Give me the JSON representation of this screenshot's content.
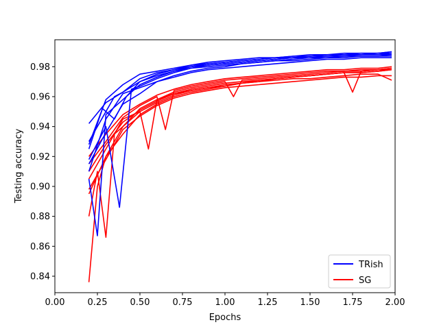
{
  "chart_data": {
    "type": "line",
    "xlabel": "Epochs",
    "ylabel": "Testing accuracy",
    "xlim": [
      0.0,
      2.0
    ],
    "ylim": [
      0.829,
      0.998
    ],
    "xticks": [
      "0.00",
      "0.25",
      "0.50",
      "0.75",
      "1.00",
      "1.25",
      "1.50",
      "1.75",
      "2.00"
    ],
    "yticks": [
      "0.84",
      "0.86",
      "0.88",
      "0.90",
      "0.92",
      "0.94",
      "0.96",
      "0.98"
    ],
    "grid": false,
    "legend_position": "bottom-right",
    "legend": [
      {
        "label": "TRish",
        "color": "#0000ff"
      },
      {
        "label": "SG",
        "color": "#ff0000"
      }
    ],
    "series": [
      {
        "group": "TRish",
        "color": "#0000ff",
        "x": [
          0.2,
          0.3,
          0.4,
          0.5,
          0.6,
          0.7,
          0.8,
          0.9,
          1.0,
          1.1,
          1.2,
          1.3,
          1.4,
          1.5,
          1.6,
          1.7,
          1.8,
          1.9,
          1.98
        ],
        "values": [
          0.942,
          0.956,
          0.963,
          0.972,
          0.976,
          0.978,
          0.981,
          0.982,
          0.983,
          0.984,
          0.985,
          0.986,
          0.987,
          0.987,
          0.988,
          0.988,
          0.988,
          0.989,
          0.989
        ]
      },
      {
        "group": "TRish",
        "color": "#0000ff",
        "x": [
          0.2,
          0.25,
          0.3,
          0.4,
          0.5,
          0.6,
          0.7,
          0.8,
          0.9,
          1.0,
          1.1,
          1.2,
          1.3,
          1.4,
          1.5,
          1.6,
          1.7,
          1.8,
          1.9,
          1.98
        ],
        "values": [
          0.905,
          0.867,
          0.948,
          0.958,
          0.968,
          0.973,
          0.977,
          0.979,
          0.981,
          0.982,
          0.983,
          0.984,
          0.985,
          0.986,
          0.987,
          0.987,
          0.988,
          0.988,
          0.988,
          0.989
        ]
      },
      {
        "group": "TRish",
        "color": "#0000ff",
        "x": [
          0.2,
          0.3,
          0.35,
          0.4,
          0.5,
          0.6,
          0.7,
          0.8,
          0.9,
          1.0,
          1.1,
          1.2,
          1.3,
          1.4,
          1.5,
          1.6,
          1.7,
          1.8,
          1.9,
          1.98
        ],
        "values": [
          0.93,
          0.95,
          0.96,
          0.963,
          0.97,
          0.975,
          0.978,
          0.98,
          0.981,
          0.982,
          0.983,
          0.984,
          0.985,
          0.986,
          0.986,
          0.987,
          0.987,
          0.988,
          0.988,
          0.988
        ]
      },
      {
        "group": "TRish",
        "color": "#0000ff",
        "x": [
          0.2,
          0.3,
          0.38,
          0.45,
          0.5,
          0.6,
          0.7,
          0.8,
          0.9,
          1.0,
          1.1,
          1.2,
          1.3,
          1.4,
          1.5,
          1.6,
          1.7,
          1.8,
          1.9,
          1.98
        ],
        "values": [
          0.918,
          0.94,
          0.886,
          0.965,
          0.967,
          0.972,
          0.976,
          0.979,
          0.98,
          0.981,
          0.982,
          0.983,
          0.984,
          0.985,
          0.986,
          0.986,
          0.987,
          0.987,
          0.987,
          0.988
        ]
      },
      {
        "group": "TRish",
        "color": "#0000ff",
        "x": [
          0.2,
          0.28,
          0.35,
          0.42,
          0.5,
          0.6,
          0.7,
          0.8,
          0.9,
          1.0,
          1.1,
          1.2,
          1.3,
          1.4,
          1.5,
          1.6,
          1.7,
          1.8,
          1.9,
          1.98
        ],
        "values": [
          0.925,
          0.952,
          0.945,
          0.96,
          0.97,
          0.974,
          0.977,
          0.98,
          0.982,
          0.983,
          0.984,
          0.985,
          0.986,
          0.986,
          0.987,
          0.988,
          0.988,
          0.989,
          0.989,
          0.99
        ]
      },
      {
        "group": "TRish",
        "color": "#0000ff",
        "x": [
          0.2,
          0.3,
          0.4,
          0.5,
          0.6,
          0.7,
          0.8,
          0.9,
          1.0,
          1.1,
          1.2,
          1.3,
          1.4,
          1.5,
          1.6,
          1.7,
          1.8,
          1.9,
          1.98
        ],
        "values": [
          0.915,
          0.936,
          0.955,
          0.962,
          0.97,
          0.974,
          0.977,
          0.979,
          0.98,
          0.982,
          0.983,
          0.984,
          0.984,
          0.985,
          0.986,
          0.986,
          0.987,
          0.987,
          0.987
        ]
      },
      {
        "group": "TRish",
        "color": "#0000ff",
        "x": [
          0.2,
          0.3,
          0.4,
          0.5,
          0.6,
          0.7,
          0.8,
          0.9,
          1.0,
          1.1,
          1.2,
          1.3,
          1.4,
          1.5,
          1.6,
          1.7,
          1.8,
          1.9,
          1.98
        ],
        "values": [
          0.91,
          0.945,
          0.962,
          0.966,
          0.97,
          0.973,
          0.976,
          0.978,
          0.979,
          0.98,
          0.981,
          0.982,
          0.983,
          0.984,
          0.985,
          0.985,
          0.986,
          0.986,
          0.986
        ]
      },
      {
        "group": "TRish",
        "color": "#0000ff",
        "x": [
          0.2,
          0.3,
          0.4,
          0.5,
          0.6,
          0.7,
          0.8,
          0.9,
          1.0,
          1.1,
          1.2,
          1.3,
          1.4,
          1.5,
          1.6,
          1.7,
          1.8,
          1.9,
          1.98
        ],
        "values": [
          0.928,
          0.958,
          0.968,
          0.975,
          0.977,
          0.979,
          0.981,
          0.983,
          0.984,
          0.985,
          0.986,
          0.986,
          0.987,
          0.988,
          0.988,
          0.989,
          0.989,
          0.989,
          0.99
        ]
      },
      {
        "group": "SG",
        "color": "#ff0000",
        "x": [
          0.2,
          0.25,
          0.3,
          0.4,
          0.5,
          0.6,
          0.7,
          0.8,
          0.9,
          1.0,
          1.1,
          1.2,
          1.3,
          1.4,
          1.5,
          1.6,
          1.7,
          1.8,
          1.9,
          1.98
        ],
        "values": [
          0.836,
          0.9,
          0.92,
          0.935,
          0.948,
          0.955,
          0.96,
          0.963,
          0.965,
          0.967,
          0.969,
          0.97,
          0.972,
          0.973,
          0.974,
          0.975,
          0.976,
          0.976,
          0.977,
          0.978
        ]
      },
      {
        "group": "SG",
        "color": "#ff0000",
        "x": [
          0.2,
          0.25,
          0.3,
          0.35,
          0.4,
          0.5,
          0.6,
          0.7,
          0.8,
          0.9,
          1.0,
          1.1,
          1.2,
          1.3,
          1.4,
          1.5,
          1.6,
          1.7,
          1.8,
          1.9,
          1.98
        ],
        "values": [
          0.88,
          0.91,
          0.866,
          0.935,
          0.94,
          0.95,
          0.956,
          0.961,
          0.964,
          0.966,
          0.968,
          0.969,
          0.971,
          0.972,
          0.973,
          0.974,
          0.975,
          0.976,
          0.976,
          0.977,
          0.978
        ]
      },
      {
        "group": "SG",
        "color": "#ff0000",
        "x": [
          0.2,
          0.3,
          0.4,
          0.5,
          0.6,
          0.7,
          0.8,
          0.9,
          1.0,
          1.1,
          1.2,
          1.3,
          1.4,
          1.5,
          1.6,
          1.7,
          1.75,
          1.8,
          1.9,
          1.98
        ],
        "values": [
          0.895,
          0.92,
          0.94,
          0.952,
          0.958,
          0.962,
          0.965,
          0.967,
          0.969,
          0.97,
          0.971,
          0.972,
          0.973,
          0.974,
          0.975,
          0.976,
          0.963,
          0.977,
          0.978,
          0.978
        ]
      },
      {
        "group": "SG",
        "color": "#ff0000",
        "x": [
          0.2,
          0.3,
          0.4,
          0.5,
          0.55,
          0.6,
          0.7,
          0.8,
          0.9,
          1.0,
          1.05,
          1.1,
          1.2,
          1.3,
          1.4,
          1.5,
          1.6,
          1.7,
          1.8,
          1.9,
          1.98
        ],
        "values": [
          0.905,
          0.925,
          0.945,
          0.95,
          0.925,
          0.958,
          0.963,
          0.966,
          0.968,
          0.97,
          0.96,
          0.971,
          0.972,
          0.973,
          0.974,
          0.975,
          0.976,
          0.977,
          0.977,
          0.978,
          0.979
        ]
      },
      {
        "group": "SG",
        "color": "#ff0000",
        "x": [
          0.2,
          0.3,
          0.4,
          0.5,
          0.6,
          0.65,
          0.7,
          0.8,
          0.9,
          1.0,
          1.1,
          1.2,
          1.3,
          1.4,
          1.5,
          1.6,
          1.7,
          1.8,
          1.9,
          1.98
        ],
        "values": [
          0.915,
          0.93,
          0.946,
          0.954,
          0.96,
          0.938,
          0.964,
          0.967,
          0.969,
          0.971,
          0.972,
          0.973,
          0.974,
          0.975,
          0.976,
          0.977,
          0.977,
          0.978,
          0.978,
          0.979
        ]
      },
      {
        "group": "SG",
        "color": "#ff0000",
        "x": [
          0.2,
          0.3,
          0.4,
          0.5,
          0.6,
          0.7,
          0.8,
          0.9,
          1.0,
          1.1,
          1.2,
          1.3,
          1.4,
          1.5,
          1.6,
          1.7,
          1.8,
          1.9,
          1.98
        ],
        "values": [
          0.92,
          0.935,
          0.948,
          0.955,
          0.961,
          0.965,
          0.968,
          0.97,
          0.972,
          0.973,
          0.974,
          0.975,
          0.976,
          0.977,
          0.978,
          0.978,
          0.979,
          0.979,
          0.98
        ]
      },
      {
        "group": "SG",
        "color": "#ff0000",
        "x": [
          0.2,
          0.3,
          0.4,
          0.5,
          0.6,
          0.7,
          0.8,
          0.9,
          1.0,
          1.1,
          1.2,
          1.3,
          1.4,
          1.5,
          1.6,
          1.7,
          1.8,
          1.9,
          1.98
        ],
        "values": [
          0.898,
          0.918,
          0.938,
          0.947,
          0.954,
          0.959,
          0.962,
          0.964,
          0.966,
          0.967,
          0.968,
          0.969,
          0.97,
          0.971,
          0.972,
          0.973,
          0.973,
          0.974,
          0.974
        ]
      },
      {
        "group": "SG",
        "color": "#ff0000",
        "x": [
          0.2,
          0.3,
          0.4,
          0.5,
          0.6,
          0.7,
          0.8,
          0.9,
          1.0,
          1.1,
          1.2,
          1.3,
          1.4,
          1.5,
          1.6,
          1.7,
          1.8,
          1.9,
          1.98
        ],
        "values": [
          0.91,
          0.928,
          0.943,
          0.951,
          0.957,
          0.962,
          0.964,
          0.966,
          0.967,
          0.969,
          0.97,
          0.971,
          0.972,
          0.972,
          0.973,
          0.974,
          0.975,
          0.975,
          0.971
        ]
      }
    ]
  }
}
